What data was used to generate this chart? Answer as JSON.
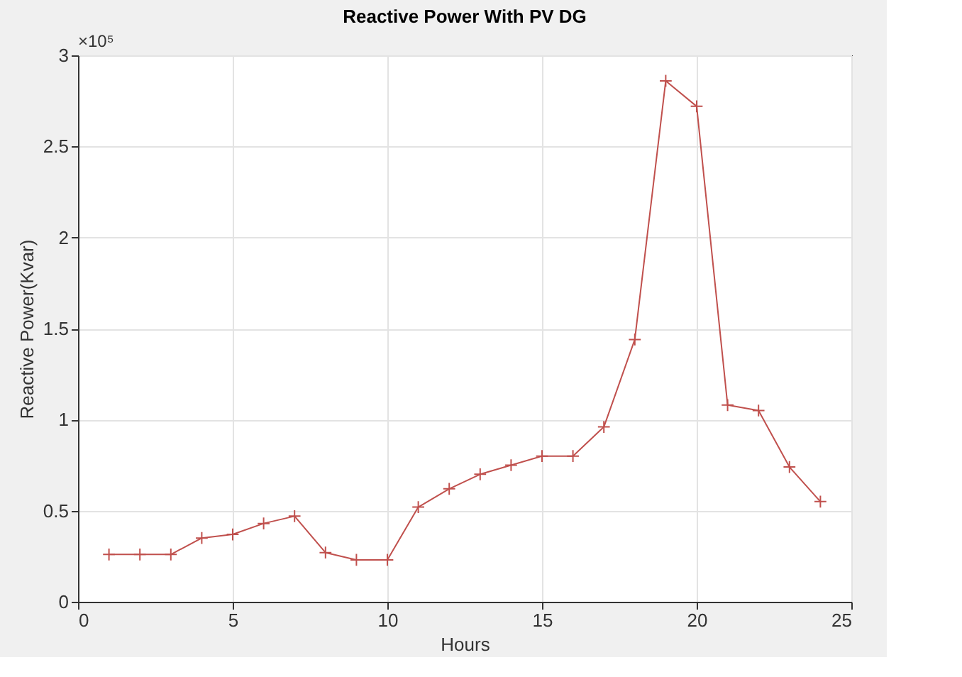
{
  "chart_data": {
    "type": "line",
    "title": "Reactive Power With PV DG",
    "xlabel": "Hours",
    "ylabel": "Reactive Power(Kvar)",
    "annotations": [
      "×10⁵"
    ],
    "x": [
      1,
      2,
      3,
      4,
      5,
      6,
      7,
      8,
      9,
      10,
      11,
      12,
      13,
      14,
      15,
      16,
      17,
      18,
      19,
      20,
      21,
      22,
      23,
      24
    ],
    "series": [
      {
        "color": "#c0504d",
        "values": [
          0.26,
          0.26,
          0.26,
          0.35,
          0.37,
          0.43,
          0.47,
          0.27,
          0.23,
          0.23,
          0.52,
          0.62,
          0.7,
          0.75,
          0.8,
          0.8,
          0.96,
          1.44,
          2.86,
          2.72,
          1.08,
          1.05,
          0.74,
          0.55
        ]
      }
    ],
    "xlim": [
      0,
      25
    ],
    "xticks": [
      0,
      5,
      10,
      15,
      20,
      25
    ],
    "ylim": [
      0,
      3
    ],
    "yticks": [
      0,
      0.5,
      1,
      1.5,
      2,
      2.5,
      3
    ],
    "grid": true,
    "marker": "cross",
    "line_style": "solid"
  }
}
